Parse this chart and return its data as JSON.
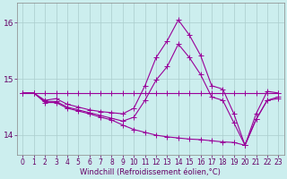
{
  "xlabel": "Windchill (Refroidissement éolien,°C)",
  "background_color": "#cceeee",
  "grid_color": "#aacccc",
  "line_color": "#990099",
  "xlim": [
    -0.5,
    23.5
  ],
  "ylim": [
    13.65,
    16.35
  ],
  "yticks": [
    14,
    15,
    16
  ],
  "xticks": [
    0,
    1,
    2,
    3,
    4,
    5,
    6,
    7,
    8,
    9,
    10,
    11,
    12,
    13,
    14,
    15,
    16,
    17,
    18,
    19,
    20,
    21,
    22,
    23
  ],
  "series": [
    {
      "x": [
        0,
        1,
        2,
        3,
        4,
        5,
        6,
        7,
        8,
        9,
        10,
        11,
        12,
        13,
        14,
        15,
        16,
        17,
        18,
        19,
        20,
        21,
        22,
        23
      ],
      "y": [
        14.75,
        14.75,
        14.62,
        14.65,
        14.55,
        14.5,
        14.45,
        14.42,
        14.4,
        14.38,
        14.48,
        14.88,
        15.38,
        15.68,
        16.05,
        15.78,
        15.42,
        14.88,
        14.82,
        14.38,
        13.82,
        14.38,
        14.78,
        14.75
      ]
    },
    {
      "x": [
        0,
        1,
        2,
        3,
        4,
        5,
        6,
        7,
        8,
        9,
        10,
        11,
        12,
        13,
        14,
        15,
        16,
        17,
        18,
        19,
        20,
        21,
        22,
        23
      ],
      "y": [
        14.75,
        14.75,
        14.6,
        14.6,
        14.5,
        14.45,
        14.4,
        14.35,
        14.3,
        14.25,
        14.32,
        14.62,
        14.98,
        15.22,
        15.62,
        15.38,
        15.08,
        14.68,
        14.62,
        14.22,
        13.82,
        14.28,
        14.62,
        14.68
      ]
    },
    {
      "x": [
        0,
        1,
        2,
        3,
        4,
        5,
        6,
        7,
        8,
        9,
        10,
        11,
        12,
        13,
        14,
        15,
        16,
        17,
        18,
        19,
        20,
        21,
        22,
        23
      ],
      "y": [
        14.75,
        14.75,
        14.58,
        14.58,
        14.48,
        14.43,
        14.38,
        14.32,
        14.27,
        14.18,
        14.1,
        14.05,
        14.0,
        13.97,
        13.95,
        13.93,
        13.92,
        13.9,
        13.88,
        13.87,
        13.82,
        14.28,
        14.62,
        14.65
      ]
    },
    {
      "x": [
        0,
        1,
        2,
        3,
        4,
        5,
        6,
        7,
        8,
        9,
        10,
        11,
        12,
        13,
        14,
        15,
        16,
        17,
        18,
        19,
        20,
        21,
        22,
        23
      ],
      "y": [
        14.75,
        14.75,
        14.75,
        14.75,
        14.75,
        14.75,
        14.75,
        14.75,
        14.75,
        14.75,
        14.75,
        14.75,
        14.75,
        14.75,
        14.75,
        14.75,
        14.75,
        14.75,
        14.75,
        14.75,
        14.75,
        14.75,
        14.75,
        14.75
      ]
    }
  ],
  "marker": "+",
  "markersize": 4,
  "linewidth": 0.8,
  "tick_fontsize": 5.5,
  "xlabel_fontsize": 6.0
}
